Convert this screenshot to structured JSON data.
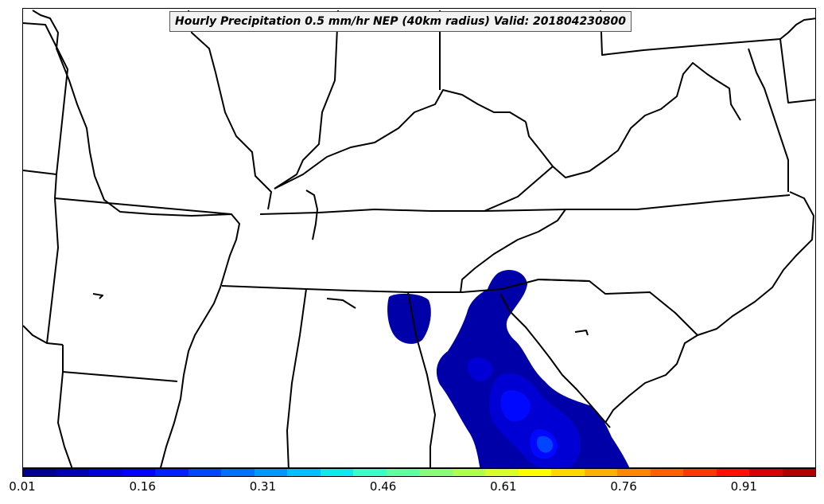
{
  "title": "Hourly Precipitation 0.5 mm/hr NEP (40km radius) Valid: 201804230800",
  "map": {
    "region": "Southeastern United States",
    "state_borders": "black",
    "probability_field_color": "#0000a8"
  },
  "colorbar": {
    "min": 0.01,
    "max": 1.0,
    "colors": [
      "#00008f",
      "#0000b4",
      "#0000d9",
      "#0000ff",
      "#0020ff",
      "#0048ff",
      "#0070ff",
      "#0098ff",
      "#00c0ff",
      "#10e8ef",
      "#38ffc7",
      "#60ff9f",
      "#88ff77",
      "#b0ff4f",
      "#d8ff27",
      "#ffff00",
      "#ffd800",
      "#ffb000",
      "#ff8800",
      "#ff6000",
      "#ff3800",
      "#ff1000",
      "#d80000",
      "#b00000"
    ],
    "tick_labels": [
      "0.01",
      "0.16",
      "0.31",
      "0.46",
      "0.61",
      "0.76",
      "0.91"
    ]
  }
}
